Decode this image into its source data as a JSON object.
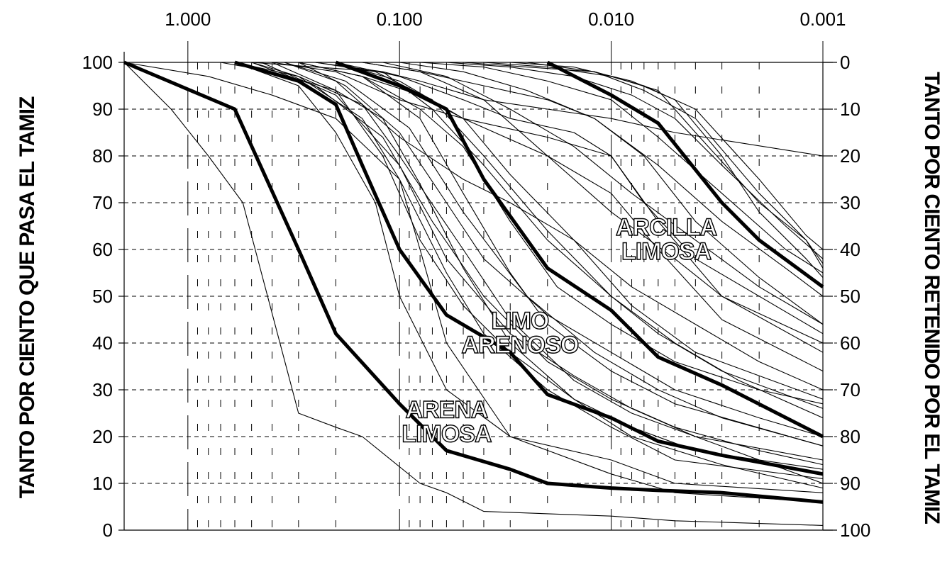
{
  "chart_data": {
    "type": "line",
    "title": "",
    "xlabel": "",
    "ylabel_left": "TANTO POR CIENTO QUE PASA EL TAMIZ",
    "ylabel_right": "TANTO POR CIENTO RETENIDO POR EL TAMIZ",
    "x_scale": "log",
    "x_reversed": true,
    "x_ticks": [
      1.0,
      0.1,
      0.01,
      0.001
    ],
    "x_tick_labels": [
      "1.000",
      "0.100",
      "0.010",
      "0.001"
    ],
    "xlim": [
      2.0,
      0.001
    ],
    "ylim": [
      0,
      100
    ],
    "y_ticks_left": [
      0,
      10,
      20,
      30,
      40,
      50,
      60,
      70,
      80,
      90,
      100
    ],
    "y_ticks_right": [
      100,
      90,
      80,
      70,
      60,
      50,
      40,
      30,
      20,
      10,
      0
    ],
    "grid": true,
    "legend": "none",
    "annotations": [
      {
        "text_lines": [
          "ARCILLA",
          "LIMOSA"
        ],
        "x": 0.0055,
        "y": 63
      },
      {
        "text_lines": [
          "LIMO",
          "ARENOSO"
        ],
        "x": 0.027,
        "y": 43
      },
      {
        "text_lines": [
          "ARENA",
          "LIMOSA"
        ],
        "x": 0.06,
        "y": 24
      }
    ],
    "series": [
      {
        "weight": "bold",
        "x": [
          2.0,
          0.6,
          0.3,
          0.2,
          0.1,
          0.06,
          0.03,
          0.02,
          0.01,
          0.006,
          0.003,
          0.001
        ],
        "y": [
          100,
          90,
          60,
          42,
          27,
          17,
          13,
          10,
          9,
          8.5,
          8,
          6
        ]
      },
      {
        "weight": "bold",
        "x": [
          0.6,
          0.3,
          0.2,
          0.15,
          0.1,
          0.06,
          0.03,
          0.02,
          0.01,
          0.006,
          0.003,
          0.001
        ],
        "y": [
          100,
          96,
          91,
          78,
          60,
          46,
          38,
          29,
          24,
          19,
          16,
          12
        ]
      },
      {
        "weight": "bold",
        "x": [
          0.2,
          0.1,
          0.06,
          0.04,
          0.02,
          0.01,
          0.006,
          0.003,
          0.001
        ],
        "y": [
          100,
          95,
          90,
          75,
          56,
          47,
          37,
          31,
          20
        ]
      },
      {
        "weight": "bold",
        "x": [
          0.02,
          0.01,
          0.006,
          0.003,
          0.002,
          0.001
        ],
        "y": [
          100,
          93,
          87,
          70,
          62,
          52
        ]
      },
      {
        "weight": "thin",
        "x": [
          2.0,
          1.2,
          0.8,
          0.55,
          0.3,
          0.2,
          0.15,
          0.08,
          0.06,
          0.04,
          0.01,
          0.005,
          0.001
        ],
        "y": [
          100,
          90,
          80,
          70,
          25,
          22,
          20,
          10,
          8,
          4,
          3,
          2,
          1
        ]
      },
      {
        "weight": "thin",
        "x": [
          2.0,
          0.8,
          0.4,
          0.2,
          0.1,
          0.08,
          0.06,
          0.03,
          0.01,
          0.005,
          0.001
        ],
        "y": [
          100,
          97,
          93,
          88,
          75,
          60,
          40,
          20,
          12,
          8,
          6
        ]
      },
      {
        "weight": "thin",
        "x": [
          0.6,
          0.3,
          0.2,
          0.13,
          0.1,
          0.06,
          0.03,
          0.01,
          0.005,
          0.001
        ],
        "y": [
          100,
          95,
          85,
          70,
          50,
          30,
          20,
          15,
          10,
          8
        ]
      },
      {
        "weight": "thin",
        "x": [
          0.5,
          0.3,
          0.15,
          0.1,
          0.06,
          0.04,
          0.02,
          0.01,
          0.005,
          0.001
        ],
        "y": [
          100,
          97,
          88,
          75,
          55,
          42,
          30,
          22,
          15,
          11
        ]
      },
      {
        "weight": "thin",
        "x": [
          0.4,
          0.2,
          0.12,
          0.08,
          0.05,
          0.03,
          0.015,
          0.008,
          0.004,
          0.001
        ],
        "y": [
          100,
          94,
          80,
          62,
          48,
          38,
          28,
          22,
          17,
          13
        ]
      },
      {
        "weight": "thin",
        "x": [
          0.3,
          0.15,
          0.08,
          0.05,
          0.03,
          0.02,
          0.01,
          0.005,
          0.001
        ],
        "y": [
          100,
          97,
          88,
          72,
          55,
          44,
          34,
          27,
          18
        ]
      },
      {
        "weight": "thin",
        "x": [
          0.3,
          0.18,
          0.1,
          0.06,
          0.04,
          0.02,
          0.01,
          0.005,
          0.002,
          0.001
        ],
        "y": [
          100,
          95,
          85,
          70,
          58,
          46,
          38,
          30,
          24,
          20
        ]
      },
      {
        "weight": "thin",
        "x": [
          0.25,
          0.12,
          0.07,
          0.04,
          0.02,
          0.01,
          0.006,
          0.003,
          0.001
        ],
        "y": [
          100,
          98,
          90,
          78,
          62,
          50,
          42,
          34,
          26
        ]
      },
      {
        "weight": "thin",
        "x": [
          0.2,
          0.1,
          0.05,
          0.03,
          0.015,
          0.008,
          0.004,
          0.002,
          0.001
        ],
        "y": [
          100,
          96,
          88,
          76,
          62,
          52,
          44,
          36,
          30
        ]
      },
      {
        "weight": "thin",
        "x": [
          0.15,
          0.08,
          0.04,
          0.02,
          0.01,
          0.005,
          0.003,
          0.001
        ],
        "y": [
          100,
          98,
          92,
          80,
          68,
          58,
          50,
          40
        ]
      },
      {
        "weight": "thin",
        "x": [
          0.12,
          0.06,
          0.03,
          0.015,
          0.008,
          0.004,
          0.002,
          0.001
        ],
        "y": [
          100,
          97,
          90,
          82,
          72,
          62,
          52,
          44
        ]
      },
      {
        "weight": "thin",
        "x": [
          0.1,
          0.05,
          0.025,
          0.012,
          0.006,
          0.003,
          0.0015,
          0.001
        ],
        "y": [
          100,
          98,
          94,
          88,
          78,
          66,
          56,
          50
        ]
      },
      {
        "weight": "thin",
        "x": [
          0.08,
          0.04,
          0.02,
          0.01,
          0.006,
          0.003,
          0.0015,
          0.001
        ],
        "y": [
          100,
          99,
          96,
          92,
          84,
          72,
          60,
          55
        ]
      },
      {
        "weight": "thin",
        "x": [
          0.06,
          0.03,
          0.015,
          0.008,
          0.005,
          0.003,
          0.0015,
          0.001
        ],
        "y": [
          100,
          99,
          97,
          93,
          88,
          78,
          65,
          58
        ]
      },
      {
        "weight": "thin",
        "x": [
          0.05,
          0.025,
          0.012,
          0.007,
          0.004,
          0.002,
          0.0012,
          0.001
        ],
        "y": [
          100,
          99,
          98,
          95,
          90,
          75,
          63,
          60
        ]
      },
      {
        "weight": "thin",
        "x": [
          0.04,
          0.02,
          0.01,
          0.006,
          0.004,
          0.002,
          0.0012,
          0.001
        ],
        "y": [
          100,
          99,
          97,
          94,
          85,
          70,
          62,
          57
        ]
      },
      {
        "weight": "thin",
        "x": [
          0.03,
          0.015,
          0.008,
          0.005,
          0.003,
          0.002,
          0.0012,
          0.001
        ],
        "y": [
          100,
          99,
          96,
          92,
          80,
          68,
          58,
          54
        ]
      },
      {
        "weight": "thin",
        "x": [
          0.025,
          0.012,
          0.007,
          0.004,
          0.002,
          0.0012,
          0.001
        ],
        "y": [
          100,
          98,
          94,
          88,
          72,
          62,
          56
        ]
      },
      {
        "weight": "thin",
        "x": [
          0.5,
          0.25,
          0.12,
          0.08,
          0.04,
          0.02,
          0.01,
          0.005,
          0.001
        ],
        "y": [
          100,
          99,
          98,
          96,
          92,
          90,
          88,
          85,
          80
        ]
      },
      {
        "weight": "thin",
        "x": [
          0.4,
          0.2,
          0.1,
          0.05,
          0.02,
          0.01,
          0.007,
          0.004,
          0.001
        ],
        "y": [
          100,
          98,
          92,
          88,
          84,
          80,
          70,
          58,
          42
        ]
      },
      {
        "weight": "thin",
        "x": [
          0.35,
          0.2,
          0.1,
          0.05,
          0.03,
          0.015,
          0.008,
          0.004,
          0.001
        ],
        "y": [
          100,
          96,
          84,
          75,
          70,
          62,
          48,
          38,
          28
        ]
      },
      {
        "weight": "thin",
        "x": [
          0.3,
          0.15,
          0.08,
          0.05,
          0.02,
          0.01,
          0.006,
          0.003,
          0.001
        ],
        "y": [
          100,
          97,
          93,
          88,
          80,
          72,
          60,
          45,
          34
        ]
      },
      {
        "weight": "thin",
        "x": [
          0.6,
          0.3,
          0.15,
          0.1,
          0.05,
          0.03,
          0.015,
          0.008,
          0.004,
          0.001
        ],
        "y": [
          100,
          97,
          91,
          80,
          60,
          45,
          32,
          25,
          20,
          15
        ]
      },
      {
        "weight": "thin",
        "x": [
          0.5,
          0.25,
          0.12,
          0.07,
          0.04,
          0.02,
          0.01,
          0.005,
          0.002,
          0.001
        ],
        "y": [
          100,
          95,
          84,
          66,
          50,
          36,
          28,
          22,
          17,
          14
        ]
      },
      {
        "weight": "thin",
        "x": [
          0.45,
          0.2,
          0.1,
          0.06,
          0.03,
          0.015,
          0.008,
          0.004,
          0.001
        ],
        "y": [
          100,
          93,
          78,
          58,
          42,
          33,
          26,
          20,
          10
        ]
      },
      {
        "weight": "thin",
        "x": [
          0.35,
          0.18,
          0.09,
          0.05,
          0.025,
          0.012,
          0.006,
          0.003,
          0.001
        ],
        "y": [
          100,
          96,
          86,
          68,
          50,
          38,
          30,
          24,
          18
        ]
      },
      {
        "weight": "thin",
        "x": [
          0.25,
          0.13,
          0.07,
          0.04,
          0.02,
          0.01,
          0.005,
          0.0025,
          0.001
        ],
        "y": [
          100,
          98,
          92,
          80,
          64,
          50,
          40,
          32,
          24
        ]
      },
      {
        "weight": "thin",
        "x": [
          0.7,
          0.4,
          0.2,
          0.12,
          0.08,
          0.05,
          0.03,
          0.015,
          0.008,
          0.003,
          0.001
        ],
        "y": [
          100,
          98,
          94,
          88,
          74,
          56,
          40,
          28,
          20,
          14,
          9
        ]
      },
      {
        "weight": "thin",
        "x": [
          0.3,
          0.15,
          0.08,
          0.05,
          0.03,
          0.018,
          0.01,
          0.005,
          0.002,
          0.001
        ],
        "y": [
          100,
          97,
          90,
          82,
          66,
          52,
          44,
          36,
          30,
          27
        ]
      },
      {
        "weight": "thin",
        "x": [
          0.2,
          0.1,
          0.05,
          0.03,
          0.015,
          0.01,
          0.006,
          0.003,
          0.001
        ],
        "y": [
          100,
          97,
          92,
          88,
          85,
          80,
          66,
          50,
          38
        ]
      },
      {
        "weight": "thin",
        "x": [
          0.15,
          0.08,
          0.04,
          0.02,
          0.012,
          0.007,
          0.004,
          0.002,
          0.001
        ],
        "y": [
          100,
          98,
          95,
          92,
          88,
          80,
          66,
          54,
          44
        ]
      }
    ]
  }
}
